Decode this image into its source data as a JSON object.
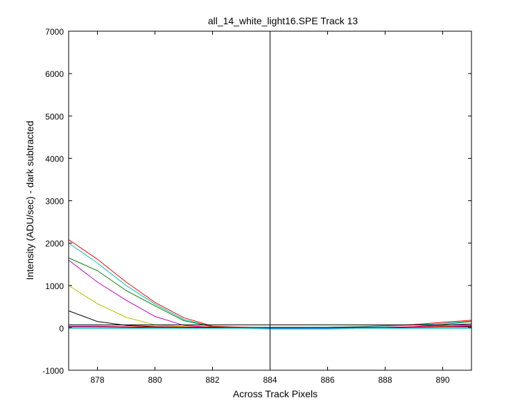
{
  "chart_data": {
    "type": "line",
    "title": "all_14_white_light16.SPE   Track 13",
    "xlabel": "Across Track Pixels",
    "ylabel": "Intensity (ADU/sec) - dark subtracted",
    "xlim": [
      877,
      891
    ],
    "ylim": [
      -1000,
      7000
    ],
    "x_ticks": [
      878,
      880,
      882,
      884,
      886,
      888,
      890
    ],
    "y_ticks": [
      -1000,
      0,
      1000,
      2000,
      3000,
      4000,
      5000,
      6000,
      7000
    ],
    "grid": false,
    "vertical_marker_x": 884,
    "x": [
      877,
      878,
      879,
      880,
      881,
      882,
      883,
      884,
      885,
      886,
      887,
      888,
      889,
      890,
      891
    ],
    "series": [
      {
        "color": "#ff0000",
        "values": [
          2080,
          1620,
          1080,
          600,
          240,
          40,
          20,
          10,
          10,
          15,
          30,
          50,
          80,
          130,
          180
        ]
      },
      {
        "color": "#00bfbf",
        "values": [
          2000,
          1530,
          1000,
          560,
          200,
          30,
          15,
          10,
          10,
          15,
          25,
          40,
          70,
          110,
          160
        ]
      },
      {
        "color": "#008000",
        "values": [
          1650,
          1350,
          880,
          520,
          170,
          25,
          10,
          5,
          5,
          5,
          -10,
          -10,
          30,
          80,
          150
        ]
      },
      {
        "color": "#bf00bf",
        "values": [
          1600,
          1080,
          650,
          270,
          60,
          20,
          10,
          5,
          5,
          5,
          10,
          15,
          30,
          60,
          100
        ]
      },
      {
        "color": "#bfbf00",
        "values": [
          1000,
          570,
          250,
          70,
          30,
          15,
          10,
          5,
          5,
          5,
          10,
          10,
          20,
          40,
          60
        ]
      },
      {
        "color": "#000000",
        "values": [
          400,
          150,
          60,
          30,
          20,
          10,
          10,
          10,
          10,
          10,
          10,
          10,
          15,
          25,
          40
        ]
      },
      {
        "color": "#0000ff",
        "values": [
          20,
          20,
          10,
          0,
          0,
          0,
          -10,
          -20,
          -20,
          -20,
          -10,
          0,
          10,
          20,
          20
        ]
      },
      {
        "color": "#ff0000",
        "values": [
          40,
          40,
          30,
          20,
          20,
          20,
          10,
          0,
          0,
          0,
          0,
          10,
          20,
          30,
          30
        ]
      },
      {
        "color": "#00bfbf",
        "values": [
          -10,
          -10,
          -10,
          -10,
          -10,
          -10,
          -10,
          -10,
          -10,
          -10,
          -10,
          -10,
          -10,
          -10,
          -10
        ]
      },
      {
        "color": "#000000",
        "values": [
          70,
          70,
          70,
          70,
          70,
          70,
          70,
          70,
          70,
          70,
          70,
          70,
          70,
          70,
          70
        ]
      }
    ]
  }
}
